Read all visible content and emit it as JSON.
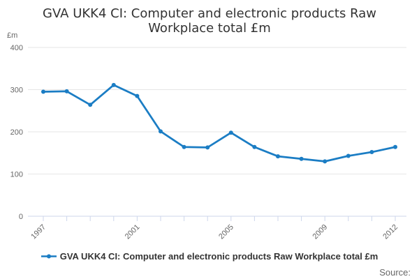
{
  "title": "GVA UKK4 CI: Computer and electronic products Raw Workplace total £m",
  "y_axis_unit": "£m",
  "legend": {
    "label": "GVA UKK4 CI: Computer and electronic products Raw Workplace total £m"
  },
  "source_label": "Source:",
  "colors": {
    "series": "#1b7dc4",
    "grid": "#e6e6e6",
    "axis": "#ccd6eb",
    "tick_label": "#666666",
    "title_text": "#333333"
  },
  "chart_data": {
    "type": "line",
    "title": "GVA UKK4 CI: Computer and electronic products Raw Workplace total £m",
    "xlabel": "",
    "ylabel": "£m",
    "ylim": [
      0,
      400
    ],
    "y_ticks": [
      0,
      100,
      200,
      300,
      400
    ],
    "x": [
      1997,
      1998,
      1999,
      2000,
      2001,
      2002,
      2003,
      2004,
      2005,
      2006,
      2007,
      2008,
      2009,
      2010,
      2011,
      2012
    ],
    "x_tick_labels": [
      "1997",
      "2001",
      "2005",
      "2009",
      "2012"
    ],
    "grid": true,
    "legend_position": "bottom",
    "series": [
      {
        "name": "GVA UKK4 CI: Computer and electronic products Raw Workplace total £m",
        "color": "#1b7dc4",
        "values": [
          295,
          296,
          264,
          311,
          285,
          201,
          164,
          163,
          198,
          164,
          142,
          136,
          130,
          143,
          152,
          164
        ]
      }
    ]
  }
}
